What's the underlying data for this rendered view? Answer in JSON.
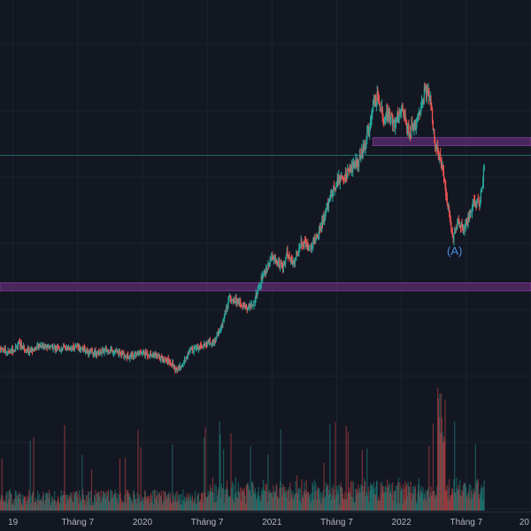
{
  "theme": {
    "background": "#131722",
    "grid": "#1e222d",
    "up_color": "#26a69a",
    "down_color": "#ef5350",
    "zone_fill": "#5b2c6f",
    "zone_border": "#8e44ad",
    "guide_line": "#2a9d8f",
    "annotation_color": "#4a90e2"
  },
  "chart_data": {
    "type": "candlestick",
    "x_ticks": [
      {
        "label": "19",
        "t": 2019.0
      },
      {
        "label": "Tháng 7",
        "t": 2019.5
      },
      {
        "label": "2020",
        "t": 2020.0
      },
      {
        "label": "Tháng 7",
        "t": 2020.5
      },
      {
        "label": "2021",
        "t": 2021.0
      },
      {
        "label": "Tháng 7",
        "t": 2021.5
      },
      {
        "label": "2022",
        "t": 2022.0
      },
      {
        "label": "Tháng 7",
        "t": 2022.5
      },
      {
        "label": "20",
        "t": 2023.0
      }
    ],
    "xlim": [
      2018.9,
      2023.0
    ],
    "price_keypoints": [
      [
        2018.9,
        380
      ],
      [
        2018.97,
        372
      ],
      [
        2019.05,
        388
      ],
      [
        2019.12,
        375
      ],
      [
        2019.22,
        386
      ],
      [
        2019.35,
        380
      ],
      [
        2019.5,
        383
      ],
      [
        2019.62,
        370
      ],
      [
        2019.75,
        378
      ],
      [
        2019.88,
        365
      ],
      [
        2019.98,
        372
      ],
      [
        2020.08,
        368
      ],
      [
        2020.15,
        362
      ],
      [
        2020.22,
        355
      ],
      [
        2020.26,
        338
      ],
      [
        2020.3,
        348
      ],
      [
        2020.38,
        380
      ],
      [
        2020.48,
        388
      ],
      [
        2020.55,
        390
      ],
      [
        2020.58,
        405
      ],
      [
        2020.62,
        430
      ],
      [
        2020.67,
        475
      ],
      [
        2020.72,
        470
      ],
      [
        2020.8,
        455
      ],
      [
        2020.86,
        465
      ],
      [
        2020.92,
        510
      ],
      [
        2021.0,
        550
      ],
      [
        2021.08,
        530
      ],
      [
        2021.12,
        558
      ],
      [
        2021.17,
        535
      ],
      [
        2021.22,
        580
      ],
      [
        2021.3,
        570
      ],
      [
        2021.38,
        610
      ],
      [
        2021.45,
        660
      ],
      [
        2021.5,
        690
      ],
      [
        2021.55,
        700
      ],
      [
        2021.62,
        720
      ],
      [
        2021.67,
        730
      ],
      [
        2021.72,
        760
      ],
      [
        2021.78,
        835
      ],
      [
        2021.82,
        855
      ],
      [
        2021.86,
        810
      ],
      [
        2021.9,
        820
      ],
      [
        2021.95,
        800
      ],
      [
        2022.0,
        830
      ],
      [
        2022.06,
        785
      ],
      [
        2022.12,
        800
      ],
      [
        2022.18,
        860
      ],
      [
        2022.22,
        855
      ],
      [
        2022.26,
        760
      ],
      [
        2022.32,
        720
      ],
      [
        2022.36,
        640
      ],
      [
        2022.4,
        585
      ],
      [
        2022.44,
        620
      ],
      [
        2022.48,
        600
      ],
      [
        2022.52,
        625
      ],
      [
        2022.56,
        660
      ],
      [
        2022.6,
        650
      ],
      [
        2022.64,
        720
      ]
    ],
    "price_ylim": [
      320,
      900
    ],
    "resistance_zones": [
      {
        "from": 760,
        "to": 775
      },
      {
        "from": 488,
        "to": 503
      }
    ],
    "guide_line_value": 742,
    "annotations": [
      {
        "text": "(A)",
        "t": 2022.41,
        "value": 555
      }
    ]
  }
}
